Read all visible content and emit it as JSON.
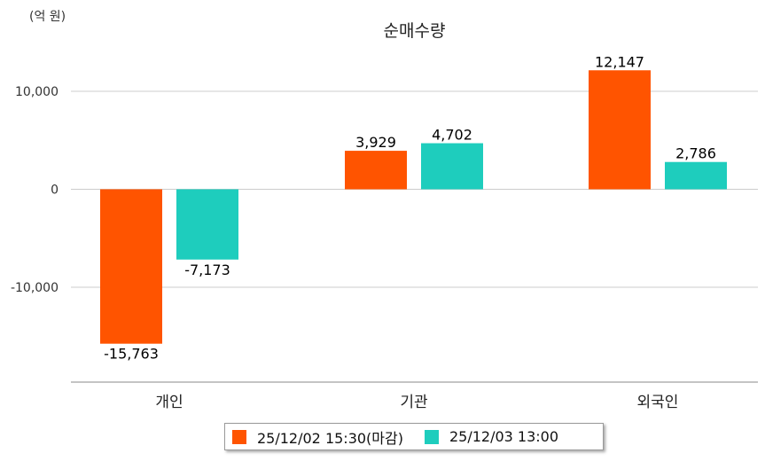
{
  "unit_label": "(억 원)",
  "chart_data": {
    "type": "bar",
    "title": "순매수량",
    "categories": [
      "개인",
      "기관",
      "외국인"
    ],
    "series": [
      {
        "name": "25/12/02 15:30(마감)",
        "color": "#ff5400",
        "values": [
          -15763,
          3929,
          12147
        ]
      },
      {
        "name": "25/12/03 13:00",
        "color": "#1ecdbd",
        "values": [
          -7173,
          4702,
          2786
        ]
      }
    ],
    "y_ticks": [
      10000,
      0,
      -10000
    ],
    "y_tick_labels": [
      "10,000",
      "0",
      "-10,000"
    ],
    "data_labels": [
      [
        "-15,763",
        "3,929",
        "12,147"
      ],
      [
        "-7,173",
        "4,702",
        "2,786"
      ]
    ],
    "ylim": [
      -19500,
      14000
    ],
    "grid": true,
    "legend_position": "bottom"
  }
}
